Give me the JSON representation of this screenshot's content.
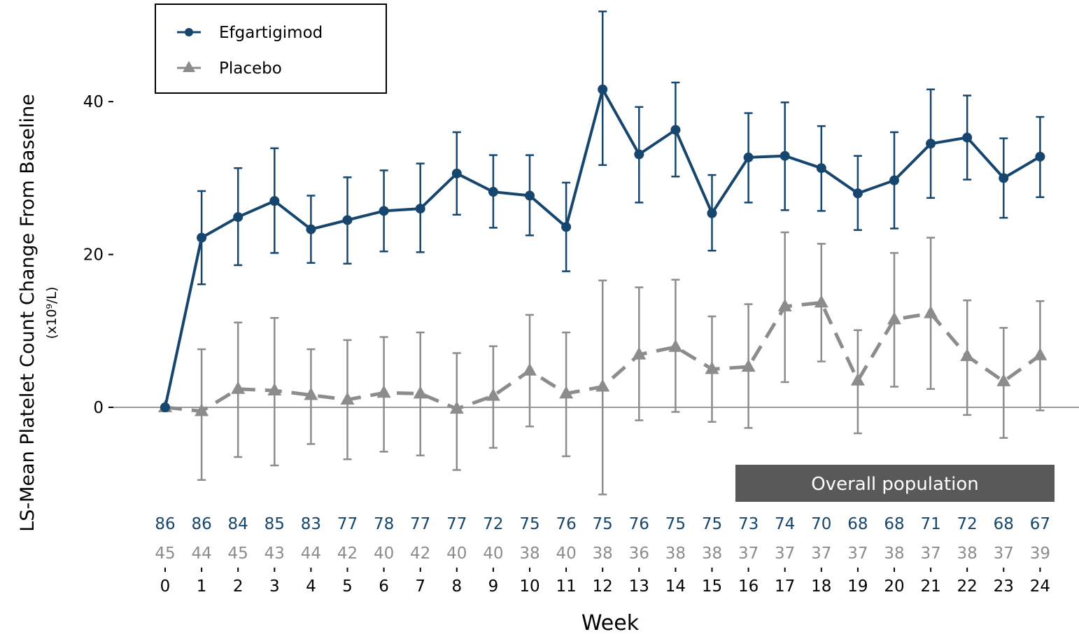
{
  "chart_data": {
    "type": "line",
    "title": "",
    "xlabel": "Week",
    "ylabel": "LS-Mean Platelet Count Change From Baseline",
    "ylabel_unit": "(x10⁹/L)",
    "x": [
      0,
      1,
      2,
      3,
      4,
      5,
      6,
      7,
      8,
      9,
      10,
      11,
      12,
      13,
      14,
      15,
      16,
      17,
      18,
      19,
      20,
      21,
      22,
      23,
      24
    ],
    "ylim": [
      -13,
      53
    ],
    "yticks": [
      0,
      20,
      40
    ],
    "legend_position": "top-left",
    "grid": false,
    "series": [
      {
        "name": "Efgartigimod",
        "color": "#16466e",
        "marker": "circle",
        "line_style": "solid",
        "values": [
          0,
          22.2,
          24.9,
          27.0,
          23.3,
          24.5,
          25.7,
          26.0,
          30.6,
          28.2,
          27.7,
          23.6,
          41.6,
          33.1,
          36.3,
          25.4,
          32.7,
          32.9,
          31.3,
          28.0,
          29.7,
          34.5,
          35.3,
          30.0,
          32.8
        ],
        "err_low": [
          0,
          16.1,
          18.6,
          20.2,
          18.9,
          18.8,
          20.4,
          20.3,
          25.2,
          23.5,
          22.5,
          17.8,
          31.7,
          26.8,
          30.2,
          20.5,
          26.8,
          25.8,
          25.7,
          23.2,
          23.4,
          27.4,
          29.8,
          24.8,
          27.5
        ],
        "err_high": [
          0,
          28.3,
          31.3,
          33.9,
          27.7,
          30.1,
          31.0,
          31.9,
          36.0,
          33.0,
          33.0,
          29.4,
          51.8,
          39.3,
          42.5,
          30.4,
          38.5,
          39.9,
          36.8,
          32.9,
          36.0,
          41.6,
          40.8,
          35.2,
          38.0
        ],
        "n_at_risk": [
          "86",
          "86",
          "84",
          "85",
          "83",
          "77",
          "78",
          "77",
          "77",
          "72",
          "75",
          "76",
          "75",
          "76",
          "75",
          "75",
          "73",
          "74",
          "70",
          "68",
          "68",
          "71",
          "72",
          "68",
          "67"
        ]
      },
      {
        "name": "Placebo",
        "color": "#8c8c8c",
        "marker": "triangle",
        "line_style": "dashed",
        "values": [
          0,
          -0.5,
          2.4,
          2.2,
          1.6,
          1.0,
          1.9,
          1.8,
          -0.2,
          1.5,
          4.8,
          1.8,
          2.7,
          6.9,
          7.9,
          5.0,
          5.3,
          13.2,
          13.7,
          3.5,
          11.5,
          12.3,
          6.7,
          3.4,
          6.8
        ],
        "err_low": [
          0,
          -9.5,
          -6.5,
          -7.6,
          -4.8,
          -6.8,
          -5.8,
          -6.3,
          -8.2,
          -5.3,
          -2.5,
          -6.4,
          -11.4,
          -1.7,
          -0.6,
          -1.9,
          -2.7,
          3.3,
          6.0,
          -3.4,
          2.7,
          2.4,
          -1.0,
          -4.0,
          -0.4
        ],
        "err_high": [
          0,
          7.6,
          11.1,
          11.7,
          7.6,
          8.8,
          9.2,
          9.8,
          7.1,
          8.0,
          12.1,
          9.8,
          16.6,
          15.7,
          16.7,
          11.9,
          13.5,
          22.9,
          21.4,
          10.1,
          20.2,
          22.2,
          14.0,
          10.4,
          13.9
        ],
        "n_at_risk": [
          "45",
          "44",
          "45",
          "43",
          "44",
          "42",
          "40",
          "42",
          "40",
          "40",
          "38",
          "40",
          "38",
          "36",
          "38",
          "38",
          "37",
          "37",
          "37",
          "37",
          "38",
          "37",
          "38",
          "37",
          "39"
        ]
      }
    ],
    "annotation": "Overall population"
  }
}
